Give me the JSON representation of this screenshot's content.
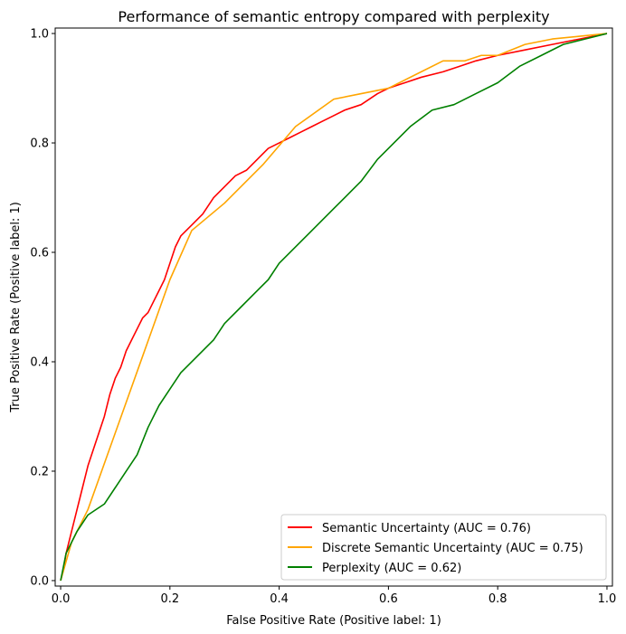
{
  "chart_data": {
    "type": "line",
    "title": "Performance of semantic entropy compared with perplexity",
    "xlabel": "False Positive Rate (Positive label: 1)",
    "ylabel": "True Positive Rate (Positive label: 1)",
    "xlim": [
      -0.01,
      1.01
    ],
    "ylim": [
      -0.01,
      1.01
    ],
    "xticks": [
      "0.0",
      "0.2",
      "0.4",
      "0.6",
      "0.8",
      "1.0"
    ],
    "yticks": [
      "0.0",
      "0.2",
      "0.4",
      "0.6",
      "0.8",
      "1.0"
    ],
    "grid": false,
    "legend_position": "lower-right",
    "series": [
      {
        "name": "Semantic Uncertainty (AUC = 0.76)",
        "color": "#ff0000",
        "x": [
          0,
          0.005,
          0.01,
          0.02,
          0.03,
          0.04,
          0.05,
          0.06,
          0.07,
          0.08,
          0.09,
          0.1,
          0.11,
          0.12,
          0.13,
          0.14,
          0.15,
          0.16,
          0.17,
          0.18,
          0.19,
          0.2,
          0.21,
          0.22,
          0.23,
          0.24,
          0.26,
          0.28,
          0.3,
          0.32,
          0.34,
          0.36,
          0.38,
          0.4,
          0.42,
          0.44,
          0.46,
          0.48,
          0.5,
          0.52,
          0.55,
          0.58,
          0.6,
          0.63,
          0.66,
          0.7,
          0.73,
          0.76,
          0.8,
          0.85,
          0.9,
          0.95,
          1.0
        ],
        "y": [
          0,
          0.02,
          0.05,
          0.09,
          0.13,
          0.17,
          0.21,
          0.24,
          0.27,
          0.3,
          0.34,
          0.37,
          0.39,
          0.42,
          0.44,
          0.46,
          0.48,
          0.49,
          0.51,
          0.53,
          0.55,
          0.58,
          0.61,
          0.63,
          0.64,
          0.65,
          0.67,
          0.7,
          0.72,
          0.74,
          0.75,
          0.77,
          0.79,
          0.8,
          0.81,
          0.82,
          0.83,
          0.84,
          0.85,
          0.86,
          0.87,
          0.89,
          0.9,
          0.91,
          0.92,
          0.93,
          0.94,
          0.95,
          0.96,
          0.97,
          0.98,
          0.99,
          1.0
        ]
      },
      {
        "name": "Discrete Semantic Uncertainty (AUC = 0.75)",
        "color": "#ffa500",
        "x": [
          0,
          0.02,
          0.05,
          0.1,
          0.15,
          0.2,
          0.24,
          0.3,
          0.37,
          0.43,
          0.5,
          0.55,
          0.6,
          0.66,
          0.7,
          0.74,
          0.77,
          0.8,
          0.85,
          0.9,
          0.95,
          1.0
        ],
        "y": [
          0,
          0.07,
          0.13,
          0.27,
          0.41,
          0.55,
          0.64,
          0.69,
          0.76,
          0.83,
          0.88,
          0.89,
          0.9,
          0.93,
          0.95,
          0.95,
          0.96,
          0.96,
          0.98,
          0.99,
          0.995,
          1.0
        ]
      },
      {
        "name": "Perplexity (AUC = 0.62)",
        "color": "#008000",
        "x": [
          0,
          0.01,
          0.03,
          0.05,
          0.08,
          0.1,
          0.12,
          0.14,
          0.16,
          0.18,
          0.2,
          0.22,
          0.25,
          0.28,
          0.3,
          0.33,
          0.36,
          0.38,
          0.4,
          0.43,
          0.46,
          0.5,
          0.53,
          0.55,
          0.58,
          0.61,
          0.64,
          0.68,
          0.72,
          0.76,
          0.8,
          0.84,
          0.88,
          0.92,
          0.96,
          1.0
        ],
        "y": [
          0,
          0.05,
          0.09,
          0.12,
          0.14,
          0.17,
          0.2,
          0.23,
          0.28,
          0.32,
          0.35,
          0.38,
          0.41,
          0.44,
          0.47,
          0.5,
          0.53,
          0.55,
          0.58,
          0.61,
          0.64,
          0.68,
          0.71,
          0.73,
          0.77,
          0.8,
          0.83,
          0.86,
          0.87,
          0.89,
          0.91,
          0.94,
          0.96,
          0.98,
          0.99,
          1.0
        ]
      }
    ]
  }
}
